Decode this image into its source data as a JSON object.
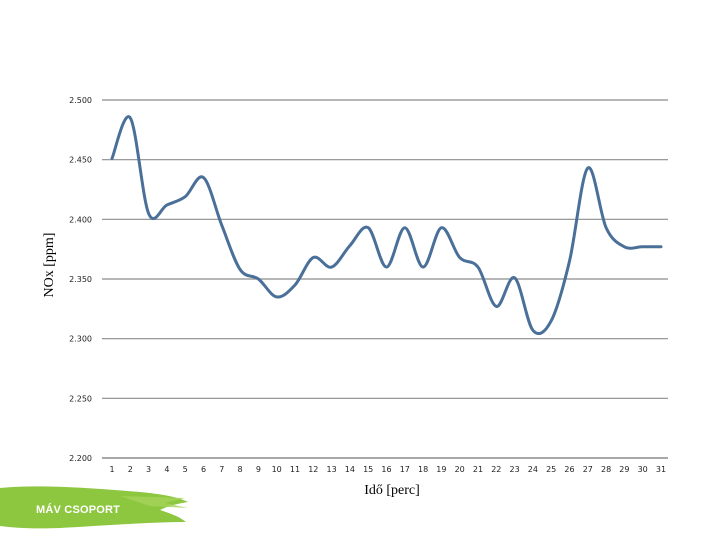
{
  "chart_data": {
    "type": "line",
    "xlabel": "Idő [perc]",
    "ylabel": "NOx [ppm]",
    "ylim": [
      2.2,
      2.5
    ],
    "yticks": [
      "2.500",
      "2.450",
      "2.400",
      "2.350",
      "2.300",
      "2.250",
      "2.200"
    ],
    "ytick_values": [
      2.5,
      2.45,
      2.4,
      2.35,
      2.3,
      2.25,
      2.2
    ],
    "x": [
      1,
      2,
      3,
      4,
      5,
      6,
      7,
      8,
      9,
      10,
      11,
      12,
      13,
      14,
      15,
      16,
      17,
      18,
      19,
      20,
      21,
      22,
      23,
      24,
      25,
      26,
      27,
      28,
      29,
      30,
      31
    ],
    "xticks": [
      "1",
      "2",
      "3",
      "4",
      "5",
      "6",
      "7",
      "8",
      "9",
      "10",
      "11",
      "12",
      "13",
      "14",
      "15",
      "16",
      "17",
      "18",
      "19",
      "20",
      "21",
      "22",
      "23",
      "24",
      "25",
      "26",
      "27",
      "28",
      "29",
      "30",
      "31"
    ],
    "series": [
      {
        "values": [
          2.451,
          2.485,
          2.405,
          2.412,
          2.419,
          2.435,
          2.395,
          2.358,
          2.35,
          2.335,
          2.345,
          2.368,
          2.36,
          2.378,
          2.393,
          2.36,
          2.393,
          2.36,
          2.393,
          2.368,
          2.36,
          2.327,
          2.351,
          2.307,
          2.315,
          2.365,
          2.443,
          2.393,
          2.377,
          2.377,
          2.377
        ]
      }
    ],
    "grid": true,
    "line_color": "#4a7099",
    "grid_color": "#8c8c8c"
  },
  "logo": {
    "text": "MÁV CSOPORT",
    "color": "#8dc63f"
  }
}
